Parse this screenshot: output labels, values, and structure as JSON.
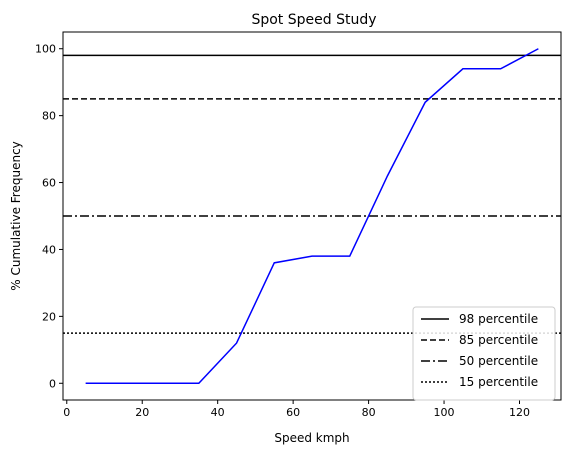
{
  "chart_data": {
    "type": "line",
    "title": "Spot Speed Study",
    "xlabel": "Speed kmph",
    "ylabel": "% Cumulative Frequency",
    "xlim": [
      -1,
      131
    ],
    "ylim": [
      -5,
      105
    ],
    "xticks": [
      0,
      20,
      40,
      60,
      80,
      100,
      120
    ],
    "yticks": [
      0,
      20,
      40,
      60,
      80,
      100
    ],
    "grid": false,
    "legend_position": "bottom-right",
    "series": [
      {
        "color": "#0000ff",
        "x": [
          5,
          15,
          25,
          35,
          45,
          55,
          65,
          75,
          85,
          95,
          105,
          115,
          125
        ],
        "y": [
          0,
          0,
          0,
          0,
          12,
          36,
          38,
          38,
          62,
          84,
          94,
          94,
          100
        ]
      }
    ],
    "reference_lines": [
      {
        "label": "98 percentile",
        "y": 98,
        "style": "solid",
        "color": "#000000"
      },
      {
        "label": "85 percentile",
        "y": 85,
        "style": "dashed",
        "color": "#000000"
      },
      {
        "label": "50 percentile",
        "y": 50,
        "style": "dashdot",
        "color": "#000000"
      },
      {
        "label": "15 percentile",
        "y": 15,
        "style": "dotted",
        "color": "#000000"
      }
    ]
  }
}
